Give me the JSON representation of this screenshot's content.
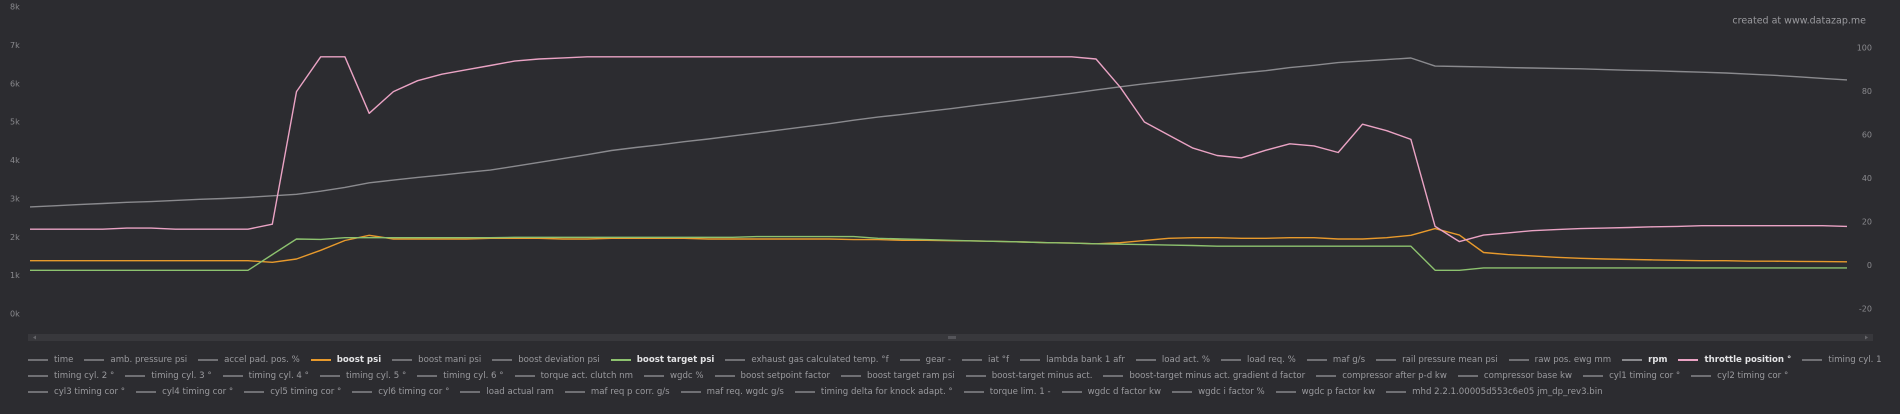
{
  "watermark": "created at www.datazap.me",
  "chart_data": {
    "type": "line",
    "ylim": [
      0,
      8000
    ],
    "yticks": [
      {
        "value": 0,
        "label": "0k"
      },
      {
        "value": 1000,
        "label": "1k"
      },
      {
        "value": 2000,
        "label": "2k"
      },
      {
        "value": 3000,
        "label": "3k"
      },
      {
        "value": 4000,
        "label": "4k"
      },
      {
        "value": 5000,
        "label": "5k"
      },
      {
        "value": 6000,
        "label": "6k"
      },
      {
        "value": 7000,
        "label": "7k"
      },
      {
        "value": 8000,
        "label": "8k"
      }
    ],
    "y2lim": [
      -22.3,
      118.9
    ],
    "y2ticks": [
      -20,
      0,
      20,
      40,
      60,
      80,
      100
    ],
    "series": [
      {
        "name": "time"
      },
      {
        "name": "amb. pressure psi"
      },
      {
        "name": "accel pad. pos. %"
      },
      {
        "name": "boost psi",
        "color": "#e89a2c",
        "axis": "y2",
        "values": [
          2.2,
          2.2,
          2.2,
          2.2,
          2.2,
          2.2,
          2.2,
          2.2,
          2.2,
          2.2,
          1.5,
          3,
          7,
          11.5,
          13.9,
          12.2,
          12.2,
          12.2,
          12.2,
          12.5,
          12.5,
          12.5,
          12.2,
          12.2,
          12.5,
          12.5,
          12.5,
          12.5,
          12.2,
          12.2,
          12.2,
          12.2,
          12.2,
          12.2,
          11.9,
          11.9,
          11.6,
          11.6,
          11.4,
          11.3,
          11.1,
          10.8,
          10.5,
          10.3,
          10.0,
          10.5,
          11.5,
          12.5,
          12.8,
          12.8,
          12.5,
          12.5,
          12.8,
          12.8,
          12.2,
          12.2,
          12.8,
          13.9,
          17,
          14,
          6,
          5,
          4.4,
          3.8,
          3.3,
          3.0,
          2.8,
          2.6,
          2.4,
          2.2,
          2.2,
          2.0,
          2.0,
          1.9,
          1.8,
          1.7
        ]
      },
      {
        "name": "boost mani psi"
      },
      {
        "name": "boost deviation psi"
      },
      {
        "name": "boost target psi",
        "color": "#8dc26f",
        "axis": "y2",
        "values": [
          -2.2,
          -2.2,
          -2.2,
          -2.2,
          -2.2,
          -2.2,
          -2.2,
          -2.2,
          -2.2,
          -2.2,
          5,
          12.2,
          12,
          12.8,
          12.8,
          12.8,
          12.8,
          12.8,
          12.8,
          12.8,
          13,
          13,
          13,
          13,
          13,
          13,
          13,
          13,
          13,
          13,
          13.3,
          13.3,
          13.3,
          13.3,
          13.3,
          12.5,
          12.2,
          11.9,
          11.6,
          11.3,
          11.1,
          10.8,
          10.5,
          10.3,
          10.0,
          9.8,
          9.6,
          9.4,
          9.2,
          8.9,
          8.9,
          8.9,
          8.9,
          8.9,
          8.9,
          8.9,
          8.9,
          8.9,
          -2.2,
          -2.2,
          -1.1,
          -1.1,
          -1.1,
          -1.1,
          -1.1,
          -1.1,
          -1.1,
          -1.1,
          -1.1,
          -1.1,
          -1.1,
          -1.1,
          -1.1,
          -1.1,
          -1.1,
          -1.1
        ]
      },
      {
        "name": "exhaust gas calculated temp. °f"
      },
      {
        "name": "gear -"
      },
      {
        "name": "iat °f"
      },
      {
        "name": "lambda bank 1 afr"
      },
      {
        "name": "load act. %"
      },
      {
        "name": "load req. %"
      },
      {
        "name": "maf g/s"
      },
      {
        "name": "rail pressure mean psi"
      },
      {
        "name": "raw pos. ewg mm"
      },
      {
        "name": "rpm",
        "color": "#8a8a8e",
        "values": [
          2790,
          2820,
          2850,
          2880,
          2910,
          2930,
          2960,
          2990,
          3010,
          3040,
          3080,
          3120,
          3200,
          3300,
          3420,
          3490,
          3560,
          3620,
          3690,
          3750,
          3850,
          3950,
          4050,
          4150,
          4260,
          4340,
          4410,
          4490,
          4560,
          4640,
          4720,
          4800,
          4880,
          4960,
          5050,
          5130,
          5200,
          5280,
          5350,
          5430,
          5510,
          5590,
          5670,
          5750,
          5840,
          5920,
          6000,
          6070,
          6140,
          6210,
          6280,
          6340,
          6420,
          6480,
          6550,
          6590,
          6630,
          6670,
          6460,
          6450,
          6440,
          6420,
          6410,
          6400,
          6390,
          6370,
          6350,
          6340,
          6320,
          6300,
          6280,
          6250,
          6220,
          6180,
          6140,
          6100
        ]
      },
      {
        "name": "throttle position °",
        "color": "#eaa3c4",
        "axis": "y2",
        "values": [
          16.7,
          16.7,
          16.7,
          16.7,
          17.2,
          17.2,
          16.7,
          16.7,
          16.7,
          16.7,
          19,
          80,
          96,
          96,
          70,
          80,
          85,
          88,
          90,
          92,
          94,
          95,
          95.5,
          96,
          96,
          96,
          96,
          96,
          96,
          96,
          96,
          96,
          96,
          96,
          96,
          96,
          96,
          96,
          96,
          96,
          96,
          96,
          96,
          96,
          95,
          82,
          66,
          60,
          54,
          50.6,
          49.5,
          53,
          56,
          55,
          52,
          65,
          62,
          58,
          18,
          11,
          14,
          15,
          16,
          16.5,
          17,
          17.2,
          17.5,
          17.8,
          18,
          18.3,
          18.3,
          18.3,
          18.3,
          18.3,
          18.3,
          18
        ]
      },
      {
        "name": "timing cyl. 1"
      },
      {
        "name": "timing cyl. 2 °"
      },
      {
        "name": "timing cyl. 3 °"
      },
      {
        "name": "timing cyl. 4 °"
      },
      {
        "name": "timing cyl. 5 °"
      },
      {
        "name": "timing cyl. 6 °"
      },
      {
        "name": "torque act. clutch nm"
      },
      {
        "name": "wgdc %"
      },
      {
        "name": "boost setpoint factor"
      },
      {
        "name": "boost target ram psi"
      },
      {
        "name": "boost-target minus act."
      },
      {
        "name": "boost-target minus act. gradient d factor"
      },
      {
        "name": "compressor after p-d kw"
      },
      {
        "name": "compressor base kw"
      },
      {
        "name": "cyl1 timing cor °"
      },
      {
        "name": "cyl2 timing cor °"
      },
      {
        "name": "cyl3 timing cor °"
      },
      {
        "name": "cyl4 timing cor °"
      },
      {
        "name": "cyl5 timing cor °"
      },
      {
        "name": "cyl6 timing cor °"
      },
      {
        "name": "load actual ram"
      },
      {
        "name": "maf req p corr. g/s"
      },
      {
        "name": "maf req. wgdc g/s"
      },
      {
        "name": "timing delta for knock adapt. °"
      },
      {
        "name": "torque lim. 1 -"
      },
      {
        "name": "wgdc d factor kw"
      },
      {
        "name": "wgdc i factor %"
      },
      {
        "name": "wgdc p factor kw"
      },
      {
        "name": "mhd 2.2.1.00005d553c6e05 jm_dp_rev3.bin"
      }
    ]
  }
}
